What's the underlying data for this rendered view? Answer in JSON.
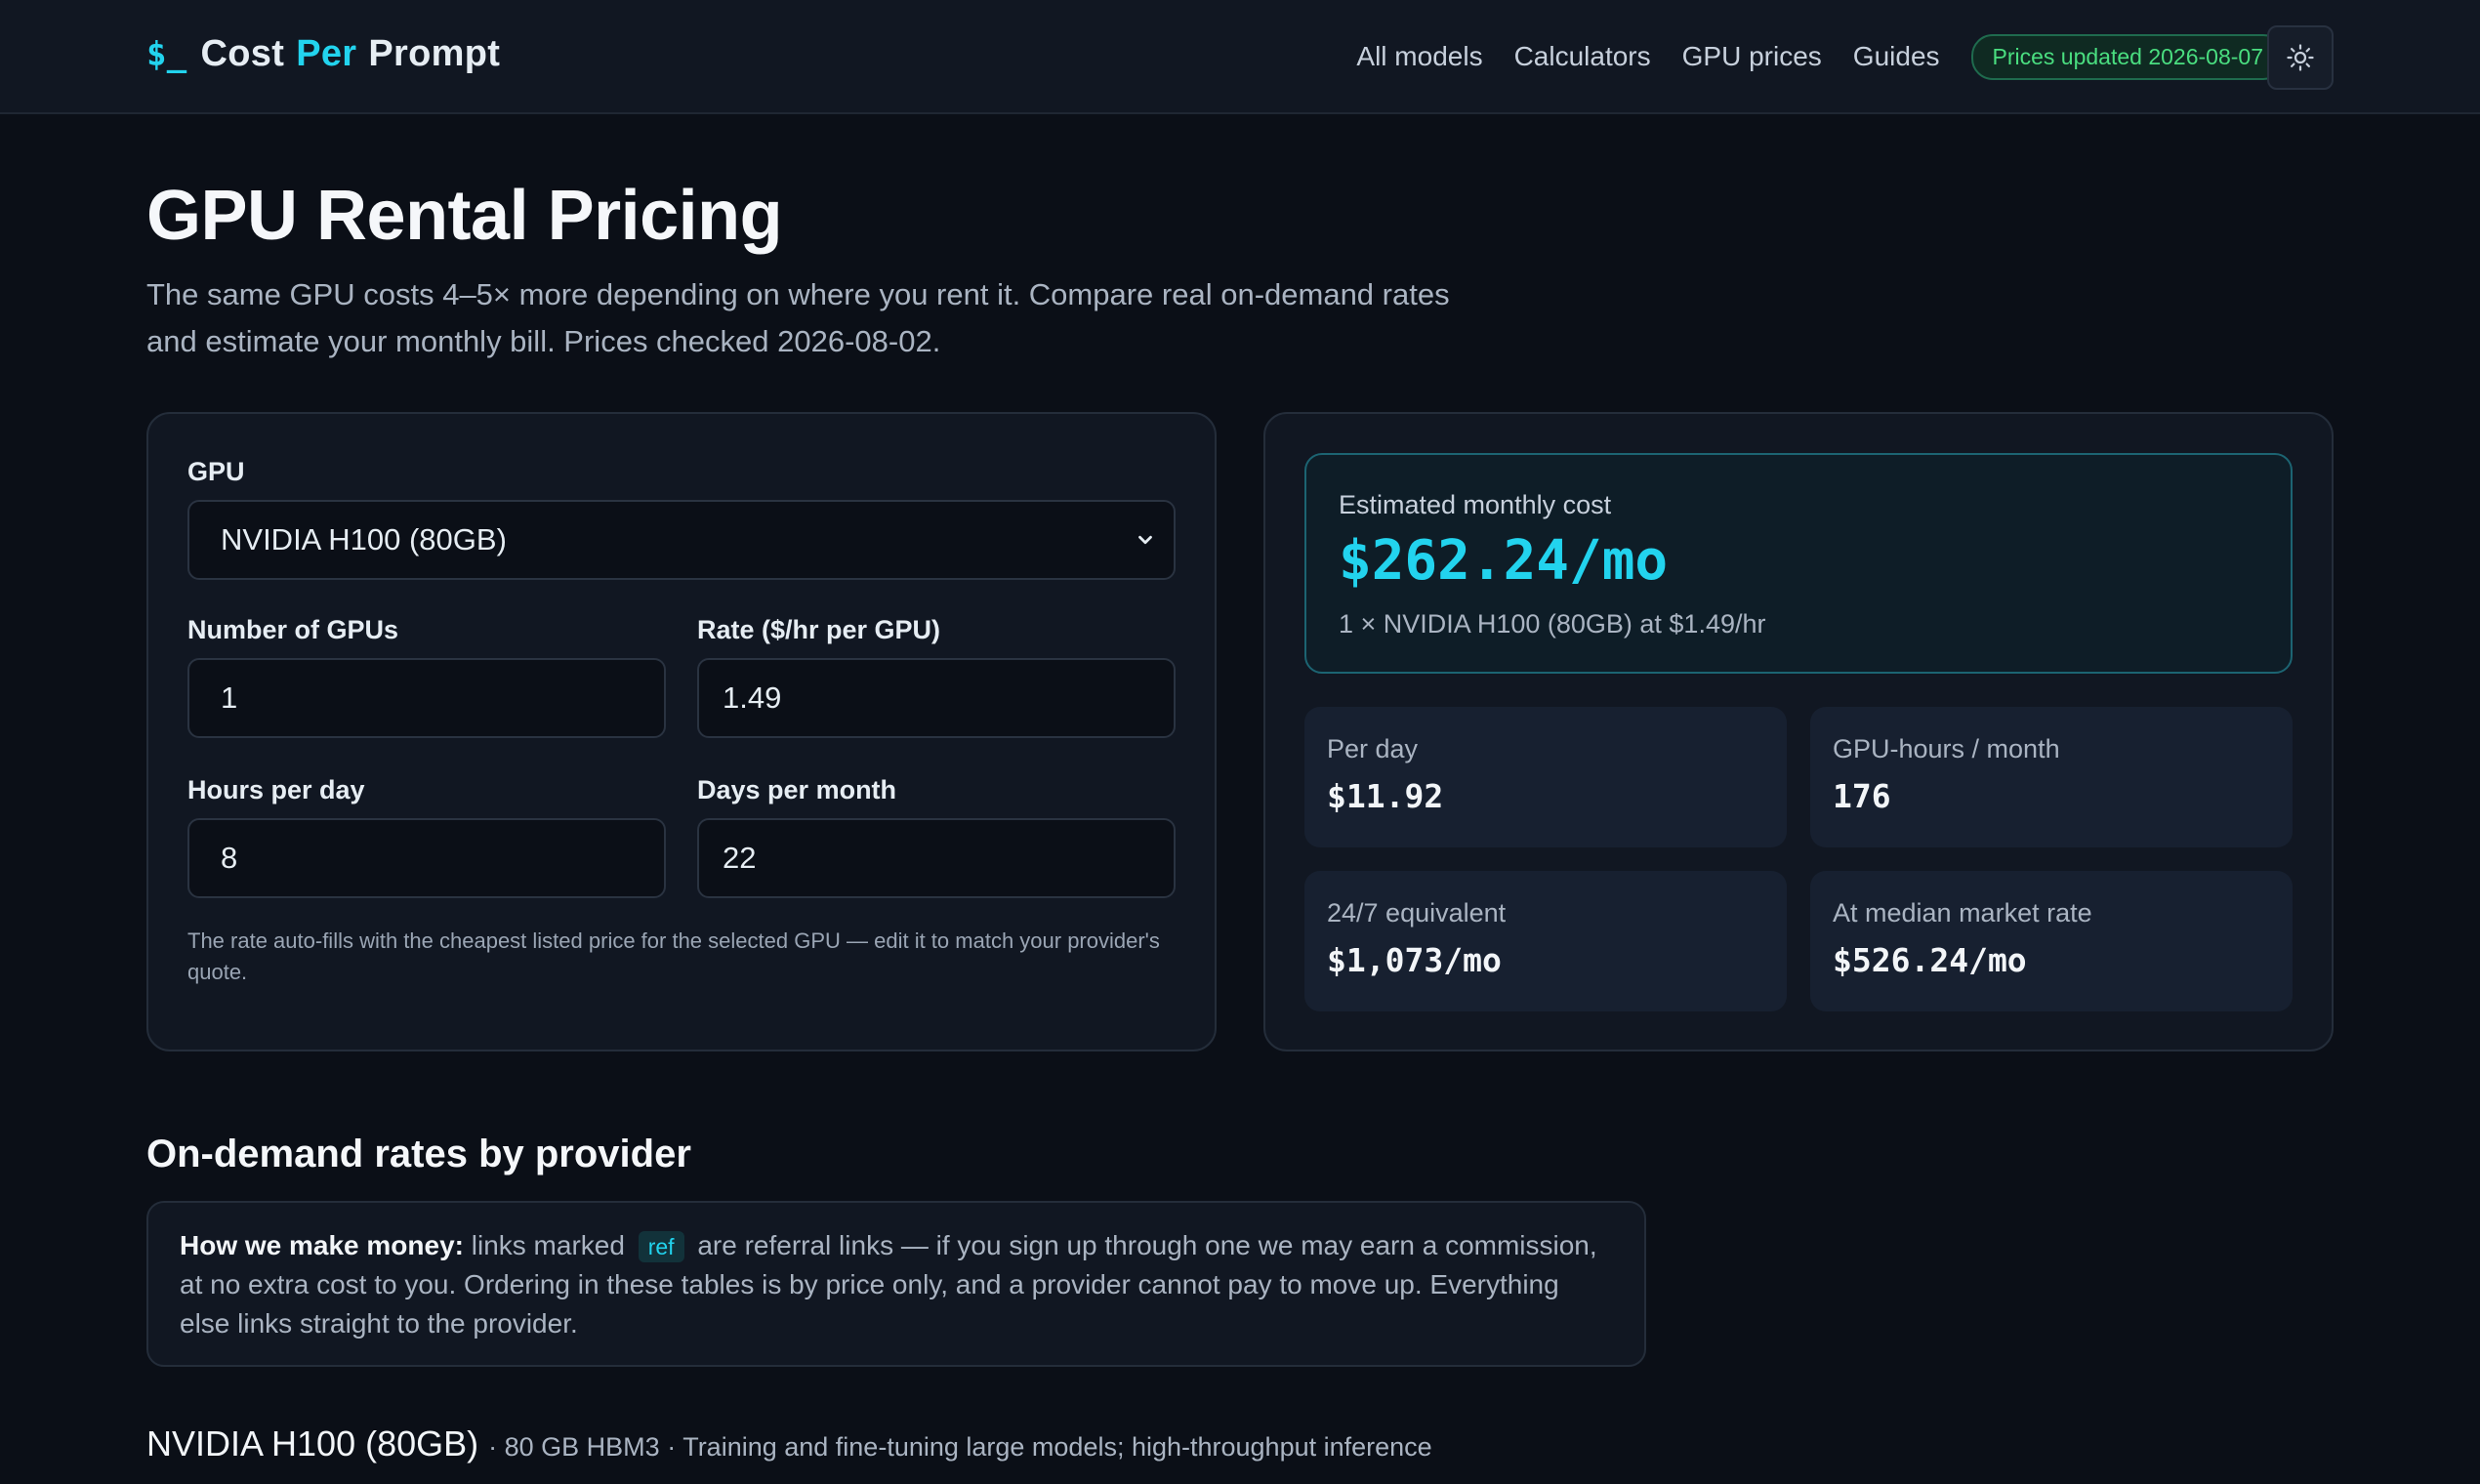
{
  "header": {
    "logo": {
      "symbol": "$_",
      "word1": "Cost",
      "word2": "Per",
      "word3": "Prompt"
    },
    "nav": [
      "All models",
      "Calculators",
      "GPU prices",
      "Guides"
    ],
    "badge": "Prices updated 2026-08-07",
    "theme_icon": "sun-icon"
  },
  "hero": {
    "title": "GPU Rental Pricing",
    "subtitle": "The same GPU costs 4–5× more depending on where you rent it. Compare real on-demand rates and estimate your monthly bill. Prices checked 2026-08-02."
  },
  "calculator": {
    "gpu_label": "GPU",
    "gpu_selected": "NVIDIA H100 (80GB)",
    "num_gpus_label": "Number of GPUs",
    "num_gpus_value": "1",
    "rate_label": "Rate ($/hr per GPU)",
    "rate_value": "1.49",
    "hours_label": "Hours per day",
    "hours_value": "8",
    "days_label": "Days per month",
    "days_value": "22",
    "help": "The rate auto-fills with the cheapest listed price for the selected GPU — edit it to match your provider's quote."
  },
  "results": {
    "estimate_label": "Estimated monthly cost",
    "estimate_value": "$262.24/mo",
    "estimate_note": "1 × NVIDIA H100 (80GB) at $1.49/hr",
    "stats": [
      {
        "label": "Per day",
        "value": "$11.92"
      },
      {
        "label": "GPU-hours / month",
        "value": "176"
      },
      {
        "label": "24/7 equivalent",
        "value": "$1,073/mo"
      },
      {
        "label": "At median market rate",
        "value": "$526.24/mo"
      }
    ]
  },
  "providers": {
    "title": "On-demand rates by provider",
    "disclosure_lead": "How we make money:",
    "disclosure_part1": "links marked",
    "ref_tag": "ref",
    "disclosure_part2": "are referral links — if you sign up through one we may earn a commission, at no extra cost to you. Ordering in these tables is by price only, and a provider cannot pay to move up. Everything else links straight to the provider.",
    "gpu_name": "NVIDIA H100 (80GB)",
    "gpu_meta": "· 80 GB HBM3 · Training and fine-tuning large models; high-throughput inference"
  },
  "colors": {
    "accent": "#22d3ee",
    "badge_green": "#4ade80",
    "background": "#0b0f17"
  }
}
